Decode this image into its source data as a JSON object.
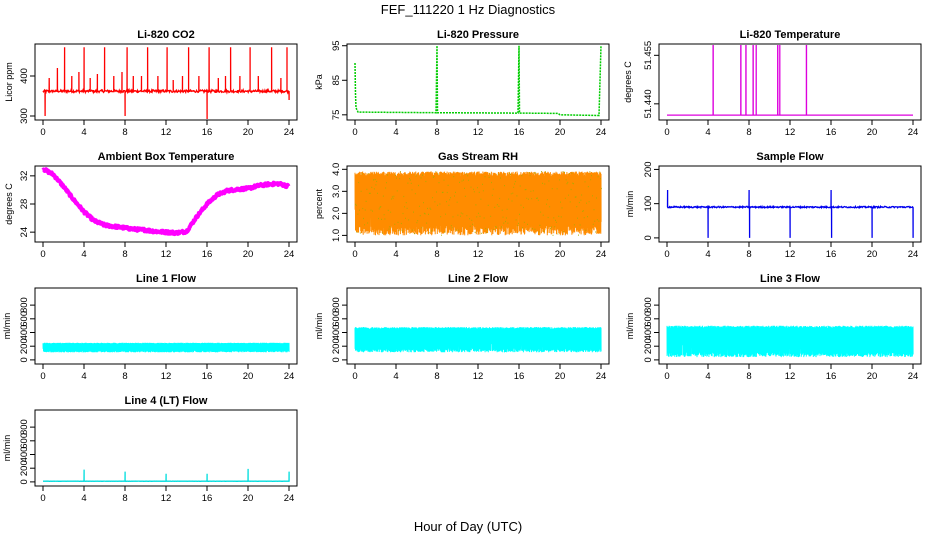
{
  "figure": {
    "title": "FEF_111220  1 Hz Diagnostics",
    "xlabel": "Hour of Day (UTC)"
  },
  "chart_data": [
    {
      "type": "line",
      "title": "Li-820 CO2",
      "ylabel": "Licor ppm",
      "xlim": [
        0,
        24
      ],
      "ylim": [
        290,
        480
      ],
      "xticks": [
        "0",
        "4",
        "8",
        "12",
        "16",
        "20",
        "24"
      ],
      "yticks": [
        {
          "v": 300,
          "label": "300"
        },
        {
          "v": 400,
          "label": "400"
        }
      ],
      "color": "#ff0000",
      "baseline": 362,
      "noise": 6,
      "spikes": [
        {
          "x": 0.2,
          "y": 300
        },
        {
          "x": 0.6,
          "y": 395
        },
        {
          "x": 1.4,
          "y": 420
        },
        {
          "x": 2.1,
          "y": 472
        },
        {
          "x": 2.8,
          "y": 400
        },
        {
          "x": 3.5,
          "y": 410
        },
        {
          "x": 4.0,
          "y": 472
        },
        {
          "x": 4.6,
          "y": 395
        },
        {
          "x": 5.3,
          "y": 405
        },
        {
          "x": 6.0,
          "y": 472
        },
        {
          "x": 6.9,
          "y": 400
        },
        {
          "x": 7.7,
          "y": 410
        },
        {
          "x": 8.0,
          "y": 300
        },
        {
          "x": 8.2,
          "y": 472
        },
        {
          "x": 8.8,
          "y": 400
        },
        {
          "x": 9.6,
          "y": 400
        },
        {
          "x": 10.2,
          "y": 472
        },
        {
          "x": 11.2,
          "y": 400
        },
        {
          "x": 12.1,
          "y": 472
        },
        {
          "x": 12.7,
          "y": 390
        },
        {
          "x": 13.6,
          "y": 400
        },
        {
          "x": 14.2,
          "y": 472
        },
        {
          "x": 15.2,
          "y": 400
        },
        {
          "x": 16.0,
          "y": 290
        },
        {
          "x": 16.2,
          "y": 472
        },
        {
          "x": 17.1,
          "y": 395
        },
        {
          "x": 17.8,
          "y": 400
        },
        {
          "x": 18.3,
          "y": 472
        },
        {
          "x": 19.2,
          "y": 400
        },
        {
          "x": 20.2,
          "y": 472
        },
        {
          "x": 21.0,
          "y": 400
        },
        {
          "x": 22.3,
          "y": 472
        },
        {
          "x": 23.2,
          "y": 395
        },
        {
          "x": 23.8,
          "y": 472
        },
        {
          "x": 24.0,
          "y": 340
        }
      ]
    },
    {
      "type": "line",
      "title": "Li-820 Pressure",
      "ylabel": "kPa",
      "xlim": [
        0,
        24
      ],
      "ylim": [
        73.5,
        95.5
      ],
      "xticks": [
        "0",
        "4",
        "8",
        "12",
        "16",
        "20",
        "24"
      ],
      "yticks": [
        {
          "v": 75,
          "label": "75"
        },
        {
          "v": 85,
          "label": "85"
        },
        {
          "v": 95,
          "label": "95"
        }
      ],
      "color": "#00cc00",
      "dotted": true,
      "points": [
        {
          "x": 0,
          "y": 90
        },
        {
          "x": 0.05,
          "y": 81
        },
        {
          "x": 0.1,
          "y": 77
        },
        {
          "x": 0.3,
          "y": 75.8
        },
        {
          "x": 7.9,
          "y": 75.6
        },
        {
          "x": 8.0,
          "y": 95
        },
        {
          "x": 8.05,
          "y": 75.6
        },
        {
          "x": 15.9,
          "y": 75.5
        },
        {
          "x": 16.0,
          "y": 95
        },
        {
          "x": 16.05,
          "y": 75.5
        },
        {
          "x": 19.8,
          "y": 75.4
        },
        {
          "x": 20.0,
          "y": 75.0
        },
        {
          "x": 23.8,
          "y": 74.8
        },
        {
          "x": 24.0,
          "y": 95
        }
      ]
    },
    {
      "type": "line",
      "title": "Li-820 Temperature",
      "ylabel": "degrees C",
      "xlim": [
        0,
        24
      ],
      "ylim": [
        51.435,
        51.4585
      ],
      "xticks": [
        "0",
        "4",
        "8",
        "12",
        "16",
        "20",
        "24"
      ],
      "yticks": [
        {
          "v": 51.44,
          "label": "51.440"
        },
        {
          "v": 51.455,
          "label": "51.455"
        }
      ],
      "color": "#dd00dd",
      "baseline": 51.4365,
      "spikes_x": [
        4.5,
        7.2,
        7.7,
        8.4,
        8.7,
        10.8,
        11.0,
        13.6
      ]
    },
    {
      "type": "line",
      "title": "Ambient Box Temperature",
      "ylabel": "degrees C",
      "xlim": [
        0,
        24
      ],
      "ylim": [
        22.6,
        33.4
      ],
      "xticks": [
        "0",
        "4",
        "8",
        "12",
        "16",
        "20",
        "24"
      ],
      "yticks": [
        {
          "v": 24,
          "label": "24"
        },
        {
          "v": 28,
          "label": "28"
        },
        {
          "v": 32,
          "label": "32"
        }
      ],
      "color": "#ff00ff",
      "thick": true,
      "points": [
        {
          "x": 0,
          "y": 33.0
        },
        {
          "x": 1,
          "y": 32.2
        },
        {
          "x": 2,
          "y": 30.5
        },
        {
          "x": 3,
          "y": 28.6
        },
        {
          "x": 4,
          "y": 26.9
        },
        {
          "x": 5,
          "y": 25.6
        },
        {
          "x": 6,
          "y": 25.0
        },
        {
          "x": 7,
          "y": 24.8
        },
        {
          "x": 8,
          "y": 24.6
        },
        {
          "x": 9,
          "y": 24.4
        },
        {
          "x": 10,
          "y": 24.3
        },
        {
          "x": 11,
          "y": 24.1
        },
        {
          "x": 12,
          "y": 24.0
        },
        {
          "x": 13,
          "y": 23.9
        },
        {
          "x": 14,
          "y": 24.1
        },
        {
          "x": 15,
          "y": 26.2
        },
        {
          "x": 16,
          "y": 28.0
        },
        {
          "x": 17,
          "y": 29.3
        },
        {
          "x": 18,
          "y": 29.9
        },
        {
          "x": 19,
          "y": 30.1
        },
        {
          "x": 20,
          "y": 30.2
        },
        {
          "x": 21,
          "y": 30.6
        },
        {
          "x": 22,
          "y": 30.8
        },
        {
          "x": 23,
          "y": 30.9
        },
        {
          "x": 24,
          "y": 30.5
        }
      ]
    },
    {
      "type": "line",
      "title": "Gas Stream RH",
      "ylabel": "percent",
      "xlim": [
        0,
        24
      ],
      "ylim": [
        0.7,
        4.15
      ],
      "xticks": [
        "0",
        "4",
        "8",
        "12",
        "16",
        "20",
        "24"
      ],
      "yticks": [
        {
          "v": 1.0,
          "label": "1.0"
        },
        {
          "v": 2.0,
          "label": "2.0"
        },
        {
          "v": 3.0,
          "label": "3.0"
        },
        {
          "v": 4.0,
          "label": "4.0"
        }
      ],
      "color": "#ff8c00",
      "color2": "#aaaa00",
      "band": {
        "top": 3.9,
        "bottom": 1.0
      }
    },
    {
      "type": "line",
      "title": "Sample Flow",
      "ylabel": "ml/min",
      "xlim": [
        0,
        24
      ],
      "ylim": [
        -12,
        210
      ],
      "xticks": [
        "0",
        "4",
        "8",
        "12",
        "16",
        "20",
        "24"
      ],
      "yticks": [
        {
          "v": 0,
          "label": "0"
        },
        {
          "v": 100,
          "label": "100"
        },
        {
          "v": 200,
          "label": "200"
        }
      ],
      "color": "#0000ee",
      "baseline": 90,
      "noise": 4,
      "spikes": [
        {
          "x": 0.05,
          "y": 140
        },
        {
          "x": 4.0,
          "y": 0
        },
        {
          "x": 8.0,
          "y": 140
        },
        {
          "x": 8.05,
          "y": 0
        },
        {
          "x": 12.0,
          "y": 0
        },
        {
          "x": 16.0,
          "y": 140
        },
        {
          "x": 16.05,
          "y": 0
        },
        {
          "x": 20.0,
          "y": 0
        },
        {
          "x": 24.0,
          "y": 0
        }
      ]
    },
    {
      "type": "line",
      "title": "Line 1 Flow",
      "ylabel": "ml/min",
      "xlim": [
        0,
        24
      ],
      "ylim": [
        -60,
        1050
      ],
      "xticks": [
        "0",
        "4",
        "8",
        "12",
        "16",
        "20",
        "24"
      ],
      "yticks": [
        {
          "v": 0,
          "label": "0"
        },
        {
          "v": 200,
          "label": "200"
        },
        {
          "v": 400,
          "label": "400"
        },
        {
          "v": 600,
          "label": "600"
        },
        {
          "v": 800,
          "label": "800"
        }
      ],
      "color": "#00ffff",
      "band": {
        "top": 250,
        "bottom": 110
      }
    },
    {
      "type": "line",
      "title": "Line 2 Flow",
      "ylabel": "ml/min",
      "xlim": [
        0,
        24
      ],
      "ylim": [
        -60,
        1050
      ],
      "xticks": [
        "0",
        "4",
        "8",
        "12",
        "16",
        "20",
        "24"
      ],
      "yticks": [
        {
          "v": 0,
          "label": "0"
        },
        {
          "v": 200,
          "label": "200"
        },
        {
          "v": 400,
          "label": "400"
        },
        {
          "v": 600,
          "label": "600"
        },
        {
          "v": 800,
          "label": "800"
        }
      ],
      "color": "#00ffff",
      "band": {
        "top": 480,
        "bottom": 110
      }
    },
    {
      "type": "line",
      "title": "Line 3 Flow",
      "ylabel": "ml/min",
      "xlim": [
        0,
        24
      ],
      "ylim": [
        -60,
        1050
      ],
      "xticks": [
        "0",
        "4",
        "8",
        "12",
        "16",
        "20",
        "24"
      ],
      "yticks": [
        {
          "v": 0,
          "label": "0"
        },
        {
          "v": 200,
          "label": "200"
        },
        {
          "v": 400,
          "label": "400"
        },
        {
          "v": 600,
          "label": "600"
        },
        {
          "v": 800,
          "label": "800"
        }
      ],
      "color": "#00ffff",
      "band": {
        "top": 500,
        "bottom": 40
      }
    },
    {
      "type": "line",
      "title": "Line 4 (LT) Flow",
      "ylabel": "ml/min",
      "xlim": [
        0,
        24
      ],
      "ylim": [
        -60,
        1050
      ],
      "xticks": [
        "0",
        "4",
        "8",
        "12",
        "16",
        "20",
        "24"
      ],
      "yticks": [
        {
          "v": 0,
          "label": "0"
        },
        {
          "v": 200,
          "label": "200"
        },
        {
          "v": 400,
          "label": "400"
        },
        {
          "v": 600,
          "label": "600"
        },
        {
          "v": 800,
          "label": "800"
        }
      ],
      "color": "#00dddd",
      "baseline": 10,
      "noise": 2,
      "spikes": [
        {
          "x": 4.0,
          "y": 180
        },
        {
          "x": 8.0,
          "y": 150
        },
        {
          "x": 12.0,
          "y": 120
        },
        {
          "x": 16.0,
          "y": 120
        },
        {
          "x": 20.0,
          "y": 190
        },
        {
          "x": 24.0,
          "y": 150
        }
      ]
    }
  ]
}
